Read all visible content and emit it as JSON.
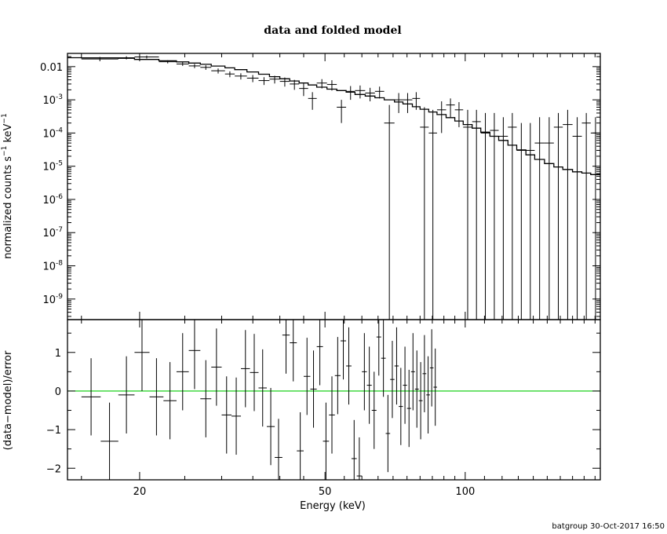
{
  "title": "data and folded model",
  "footer": "batgroup 30-Oct-2017 16:50",
  "colors": {
    "data": "#000000",
    "model": "#000000",
    "zero_line": "#00cc00",
    "frame": "#000000"
  },
  "chart_data": [
    {
      "type": "scatter",
      "panel": "top",
      "ylabel": "normalized counts s⁻¹ keV⁻¹",
      "xscale": "log",
      "yscale": "log",
      "xlim": [
        14,
        195
      ],
      "ylim": [
        2.4e-10,
        0.025
      ],
      "y_ticks": [
        {
          "value": 0.01,
          "label": "0.01"
        },
        {
          "value": 0.001,
          "mant": "10",
          "exp": "-3"
        },
        {
          "value": 0.0001,
          "mant": "10",
          "exp": "-4"
        },
        {
          "value": 1e-05,
          "mant": "10",
          "exp": "-5"
        },
        {
          "value": 1e-06,
          "mant": "10",
          "exp": "-6"
        },
        {
          "value": 1e-07,
          "mant": "10",
          "exp": "-7"
        },
        {
          "value": 1e-08,
          "mant": "10",
          "exp": "-8"
        },
        {
          "value": 1e-09,
          "mant": "10",
          "exp": "-9"
        }
      ],
      "data_points": [
        {
          "x_lo": 15.0,
          "x_hi": 18.0,
          "y": 0.017,
          "y_lo": 0.0145,
          "y_hi": 0.0195
        },
        {
          "x_lo": 18.0,
          "x_hi": 19.5,
          "y": 0.0185,
          "y_lo": 0.0165,
          "y_hi": 0.0205
        },
        {
          "x_lo": 19.5,
          "x_hi": 22.0,
          "y": 0.0195,
          "y_lo": 0.0175,
          "y_hi": 0.0215
        },
        {
          "x_lo": 22.0,
          "x_hi": 24.0,
          "y": 0.014,
          "y_lo": 0.0125,
          "y_hi": 0.0155
        },
        {
          "x_lo": 24.0,
          "x_hi": 25.5,
          "y": 0.012,
          "y_lo": 0.0105,
          "y_hi": 0.0135
        },
        {
          "x_lo": 25.5,
          "x_hi": 27.0,
          "y": 0.0105,
          "y_lo": 0.009,
          "y_hi": 0.012
        },
        {
          "x_lo": 27.0,
          "x_hi": 28.5,
          "y": 0.0095,
          "y_lo": 0.008,
          "y_hi": 0.011
        },
        {
          "x_lo": 28.5,
          "x_hi": 30.5,
          "y": 0.0075,
          "y_lo": 0.0062,
          "y_hi": 0.0088
        },
        {
          "x_lo": 30.5,
          "x_hi": 32.0,
          "y": 0.006,
          "y_lo": 0.0048,
          "y_hi": 0.0072
        },
        {
          "x_lo": 32.0,
          "x_hi": 34.0,
          "y": 0.0052,
          "y_lo": 0.0041,
          "y_hi": 0.0063
        },
        {
          "x_lo": 34.0,
          "x_hi": 36.0,
          "y": 0.0045,
          "y_lo": 0.0034,
          "y_hi": 0.0056
        },
        {
          "x_lo": 36.0,
          "x_hi": 38.0,
          "y": 0.0038,
          "y_lo": 0.0028,
          "y_hi": 0.0048
        },
        {
          "x_lo": 38.0,
          "x_hi": 40.0,
          "y": 0.0042,
          "y_lo": 0.0031,
          "y_hi": 0.0053
        },
        {
          "x_lo": 40.0,
          "x_hi": 42.0,
          "y": 0.0036,
          "y_lo": 0.0025,
          "y_hi": 0.0047
        },
        {
          "x_lo": 42.0,
          "x_hi": 44.0,
          "y": 0.003,
          "y_lo": 0.002,
          "y_hi": 0.004
        },
        {
          "x_lo": 44.0,
          "x_hi": 46.0,
          "y": 0.0022,
          "y_lo": 0.0013,
          "y_hi": 0.0031
        },
        {
          "x_lo": 46.0,
          "x_hi": 48.0,
          "y": 0.0011,
          "y_lo": 0.0005,
          "y_hi": 0.0017
        },
        {
          "x_lo": 48.0,
          "x_hi": 50.5,
          "y": 0.0032,
          "y_lo": 0.0022,
          "y_hi": 0.0042
        },
        {
          "x_lo": 50.5,
          "x_hi": 53.0,
          "y": 0.0029,
          "y_lo": 0.0019,
          "y_hi": 0.0039
        },
        {
          "x_lo": 53.0,
          "x_hi": 55.5,
          "y": 0.0006,
          "y_lo": 0.0002,
          "y_hi": 0.001
        },
        {
          "x_lo": 55.5,
          "x_hi": 58.0,
          "y": 0.0018,
          "y_lo": 0.001,
          "y_hi": 0.0026
        },
        {
          "x_lo": 58.0,
          "x_hi": 61.0,
          "y": 0.0019,
          "y_lo": 0.0011,
          "y_hi": 0.0027
        },
        {
          "x_lo": 61.0,
          "x_hi": 64.0,
          "y": 0.0016,
          "y_lo": 0.0009,
          "y_hi": 0.0023
        },
        {
          "x_lo": 64.0,
          "x_hi": 67.0,
          "y": 0.0018,
          "y_lo": 0.0011,
          "y_hi": 0.0025
        },
        {
          "x_lo": 67.0,
          "x_hi": 70.5,
          "y": 0.0002,
          "y_lo": null,
          "y_hi": 0.0007
        },
        {
          "x_lo": 70.5,
          "x_hi": 73.5,
          "y": 0.001,
          "y_lo": 0.0004,
          "y_hi": 0.0016
        },
        {
          "x_lo": 73.5,
          "x_hi": 77.0,
          "y": 0.001,
          "y_lo": 0.0004,
          "y_hi": 0.0016
        },
        {
          "x_lo": 77.0,
          "x_hi": 80.0,
          "y": 0.0011,
          "y_lo": 0.0005,
          "y_hi": 0.0017
        },
        {
          "x_lo": 80.0,
          "x_hi": 83.5,
          "y": 0.00015,
          "y_lo": null,
          "y_hi": 0.0006
        },
        {
          "x_lo": 83.5,
          "x_hi": 87.0,
          "y": 0.0001,
          "y_lo": null,
          "y_hi": 0.0005
        },
        {
          "x_lo": 87.0,
          "x_hi": 91.0,
          "y": 0.0005,
          "y_lo": 0.0001,
          "y_hi": 0.0009
        },
        {
          "x_lo": 91.0,
          "x_hi": 95.0,
          "y": 0.0007,
          "y_lo": 0.0003,
          "y_hi": 0.0011
        },
        {
          "x_lo": 95.0,
          "x_hi": 99.0,
          "y": 0.0005,
          "y_lo": 0.00015,
          "y_hi": 0.00085
        },
        {
          "x_lo": 99.0,
          "x_hi": 103.5,
          "y": 0.00015,
          "y_lo": null,
          "y_hi": 0.0005
        },
        {
          "x_lo": 103.5,
          "x_hi": 108.0,
          "y": 0.00022,
          "y_lo": null,
          "y_hi": 0.0005
        },
        {
          "x_lo": 108.0,
          "x_hi": 113.0,
          "y": 0.0001,
          "y_lo": null,
          "y_hi": 0.0004
        },
        {
          "x_lo": 113.0,
          "x_hi": 118.0,
          "y": 0.00012,
          "y_lo": null,
          "y_hi": 0.0004
        },
        {
          "x_lo": 118.0,
          "x_hi": 123.5,
          "y": 8e-05,
          "y_lo": null,
          "y_hi": 0.0003
        },
        {
          "x_lo": 123.5,
          "x_hi": 129.0,
          "y": 0.00015,
          "y_lo": null,
          "y_hi": 0.0004
        },
        {
          "x_lo": 129.0,
          "x_hi": 135.0,
          "y": 3e-05,
          "y_lo": null,
          "y_hi": 0.0002
        },
        {
          "x_lo": 135.0,
          "x_hi": 141.0,
          "y": 3e-05,
          "y_lo": null,
          "y_hi": 0.0002
        },
        {
          "x_lo": 141.0,
          "x_hi": 148.0,
          "y": 5e-05,
          "y_lo": null,
          "y_hi": 0.0003
        },
        {
          "x_lo": 148.0,
          "x_hi": 155.0,
          "y": 5e-05,
          "y_lo": null,
          "y_hi": 0.0003
        },
        {
          "x_lo": 155.0,
          "x_hi": 162.0,
          "y": 0.00015,
          "y_lo": null,
          "y_hi": 0.0004
        },
        {
          "x_lo": 162.0,
          "x_hi": 170.0,
          "y": 0.00018,
          "y_lo": null,
          "y_hi": 0.0005
        },
        {
          "x_lo": 170.0,
          "x_hi": 178.0,
          "y": 8e-05,
          "y_lo": null,
          "y_hi": 0.0003
        },
        {
          "x_lo": 178.0,
          "x_hi": 186.0,
          "y": 0.0002,
          "y_lo": null,
          "y_hi": 0.0004
        },
        {
          "x_lo": 186.0,
          "x_hi": 195.0,
          "y": 0.0001,
          "y_lo": null,
          "y_hi": 0.0003
        }
      ],
      "model": {
        "type": "step",
        "edges": [
          14,
          15,
          18,
          19.5,
          22,
          24,
          25.5,
          27,
          28.5,
          30.5,
          32,
          34,
          36,
          38,
          40,
          42,
          44,
          46,
          48,
          50.5,
          53,
          55.5,
          58,
          61,
          64,
          67,
          70.5,
          73.5,
          77,
          80,
          83.5,
          87,
          91,
          95,
          99,
          103.5,
          108,
          113,
          118,
          123.5,
          129,
          135,
          141,
          148,
          155,
          162,
          170,
          178,
          186,
          195
        ],
        "values": [
          0.0185,
          0.0183,
          0.0178,
          0.0164,
          0.015,
          0.0139,
          0.0128,
          0.0117,
          0.0104,
          0.0092,
          0.0081,
          0.0069,
          0.0059,
          0.005,
          0.0043,
          0.0037,
          0.0032,
          0.0028,
          0.0024,
          0.0021,
          0.0019,
          0.0017,
          0.00145,
          0.0013,
          0.00115,
          0.001,
          0.00086,
          0.00075,
          0.00062,
          0.00052,
          0.00043,
          0.00036,
          0.00029,
          0.00023,
          0.00018,
          0.00014,
          0.000106,
          8e-05,
          6e-05,
          4.3e-05,
          3.1e-05,
          2.2e-05,
          1.6e-05,
          1.2e-05,
          9.5e-06,
          8e-06,
          6.8e-06,
          6.2e-06,
          5.6e-06
        ]
      }
    },
    {
      "type": "scatter",
      "panel": "bottom",
      "xlabel": "Energy (keV)",
      "ylabel": "(data−model)/error",
      "xscale": "log",
      "xlim": [
        14,
        195
      ],
      "ylim": [
        -2.3,
        1.85
      ],
      "x_ticks": [
        {
          "value": 20,
          "label": "20"
        },
        {
          "value": 50,
          "label": "50"
        },
        {
          "value": 100,
          "label": "100"
        }
      ],
      "y_ticks": [
        {
          "value": 1,
          "label": "1"
        },
        {
          "value": 0,
          "label": "0"
        },
        {
          "value": -1,
          "label": "−1"
        },
        {
          "value": -2,
          "label": "−2"
        }
      ],
      "zero_line": 0,
      "residuals": [
        {
          "x_lo": 15.0,
          "x_hi": 16.5,
          "y": -0.15,
          "y_lo": -1.15,
          "y_hi": 0.85
        },
        {
          "x_lo": 16.5,
          "x_hi": 18.0,
          "y": -1.3,
          "y_lo": -2.3,
          "y_hi": -0.3
        },
        {
          "x_lo": 18.0,
          "x_hi": 19.5,
          "y": -0.1,
          "y_lo": -1.1,
          "y_hi": 0.9
        },
        {
          "x_lo": 19.5,
          "x_hi": 21.0,
          "y": 1.0,
          "y_lo": 0.0,
          "y_hi": 2.0
        },
        {
          "x_lo": 21.0,
          "x_hi": 22.5,
          "y": -0.15,
          "y_lo": -1.15,
          "y_hi": 0.85
        },
        {
          "x_lo": 22.5,
          "x_hi": 24.0,
          "y": -0.25,
          "y_lo": -1.25,
          "y_hi": 0.75
        },
        {
          "x_lo": 24.0,
          "x_hi": 25.5,
          "y": 0.5,
          "y_lo": -0.5,
          "y_hi": 1.5
        },
        {
          "x_lo": 25.5,
          "x_hi": 27.0,
          "y": 1.05,
          "y_lo": 0.05,
          "y_hi": 2.05
        },
        {
          "x_lo": 27.0,
          "x_hi": 28.5,
          "y": -0.2,
          "y_lo": -1.2,
          "y_hi": 0.8
        },
        {
          "x_lo": 28.5,
          "x_hi": 30.0,
          "y": 0.62,
          "y_lo": -0.38,
          "y_hi": 1.62
        },
        {
          "x_lo": 30.0,
          "x_hi": 31.5,
          "y": -0.62,
          "y_lo": -1.62,
          "y_hi": 0.38
        },
        {
          "x_lo": 31.5,
          "x_hi": 33.0,
          "y": -0.65,
          "y_lo": -1.65,
          "y_hi": 0.35
        },
        {
          "x_lo": 33.0,
          "x_hi": 34.5,
          "y": 0.58,
          "y_lo": -0.42,
          "y_hi": 1.58
        },
        {
          "x_lo": 34.5,
          "x_hi": 36.0,
          "y": 0.48,
          "y_lo": -0.52,
          "y_hi": 1.48
        },
        {
          "x_lo": 36.0,
          "x_hi": 37.5,
          "y": 0.08,
          "y_lo": -0.92,
          "y_hi": 1.08
        },
        {
          "x_lo": 37.5,
          "x_hi": 39.0,
          "y": -0.92,
          "y_lo": -1.92,
          "y_hi": 0.08
        },
        {
          "x_lo": 39.0,
          "x_hi": 40.5,
          "y": -1.72,
          "y_lo": -2.3,
          "y_hi": -0.72
        },
        {
          "x_lo": 40.5,
          "x_hi": 42.0,
          "y": 1.45,
          "y_lo": 0.45,
          "y_hi": 1.85
        },
        {
          "x_lo": 42.0,
          "x_hi": 43.5,
          "y": 1.25,
          "y_lo": 0.25,
          "y_hi": 1.85
        },
        {
          "x_lo": 43.5,
          "x_hi": 45.0,
          "y": -1.55,
          "y_lo": -2.3,
          "y_hi": -0.55
        },
        {
          "x_lo": 45.0,
          "x_hi": 46.5,
          "y": 0.38,
          "y_lo": -0.62,
          "y_hi": 1.38
        },
        {
          "x_lo": 46.5,
          "x_hi": 48.0,
          "y": 0.05,
          "y_lo": -0.95,
          "y_hi": 1.05
        },
        {
          "x_lo": 48.0,
          "x_hi": 49.5,
          "y": 1.15,
          "y_lo": 0.15,
          "y_hi": 1.85
        },
        {
          "x_lo": 49.5,
          "x_hi": 51.0,
          "y": -1.3,
          "y_lo": -2.3,
          "y_hi": -0.3
        },
        {
          "x_lo": 51.0,
          "x_hi": 52.5,
          "y": -0.62,
          "y_lo": -1.62,
          "y_hi": 0.38
        },
        {
          "x_lo": 52.5,
          "x_hi": 54.0,
          "y": 0.4,
          "y_lo": -0.6,
          "y_hi": 1.4
        },
        {
          "x_lo": 54.0,
          "x_hi": 55.5,
          "y": 1.3,
          "y_lo": 0.3,
          "y_hi": 1.85
        },
        {
          "x_lo": 55.5,
          "x_hi": 57.0,
          "y": 0.65,
          "y_lo": -0.35,
          "y_hi": 1.65
        },
        {
          "x_lo": 57.0,
          "x_hi": 58.5,
          "y": -1.75,
          "y_lo": -2.3,
          "y_hi": -0.75
        },
        {
          "x_lo": 58.5,
          "x_hi": 60.0,
          "y": -2.2,
          "y_lo": -2.3,
          "y_hi": -1.2
        },
        {
          "x_lo": 60.0,
          "x_hi": 61.5,
          "y": 0.5,
          "y_lo": -0.5,
          "y_hi": 1.5
        },
        {
          "x_lo": 61.5,
          "x_hi": 63.0,
          "y": 0.15,
          "y_lo": -0.85,
          "y_hi": 1.15
        },
        {
          "x_lo": 63.0,
          "x_hi": 64.5,
          "y": -0.5,
          "y_lo": -1.5,
          "y_hi": 0.5
        },
        {
          "x_lo": 64.5,
          "x_hi": 66.0,
          "y": 1.4,
          "y_lo": 0.4,
          "y_hi": 1.85
        },
        {
          "x_lo": 66.0,
          "x_hi": 67.5,
          "y": 0.85,
          "y_lo": -0.15,
          "y_hi": 1.85
        },
        {
          "x_lo": 67.5,
          "x_hi": 69.0,
          "y": -1.1,
          "y_lo": -2.1,
          "y_hi": -0.1
        },
        {
          "x_lo": 69.0,
          "x_hi": 70.5,
          "y": 0.3,
          "y_lo": -0.7,
          "y_hi": 1.3
        },
        {
          "x_lo": 70.5,
          "x_hi": 72.0,
          "y": 0.65,
          "y_lo": -0.35,
          "y_hi": 1.65
        },
        {
          "x_lo": 72.0,
          "x_hi": 73.5,
          "y": -0.4,
          "y_lo": -1.4,
          "y_hi": 0.6
        },
        {
          "x_lo": 73.5,
          "x_hi": 75.0,
          "y": 0.15,
          "y_lo": -0.85,
          "y_hi": 1.15
        },
        {
          "x_lo": 75.0,
          "x_hi": 76.5,
          "y": -0.45,
          "y_lo": -1.45,
          "y_hi": 0.55
        },
        {
          "x_lo": 76.5,
          "x_hi": 78.0,
          "y": 0.5,
          "y_lo": -0.5,
          "y_hi": 1.5
        },
        {
          "x_lo": 78.0,
          "x_hi": 79.5,
          "y": 0.05,
          "y_lo": -0.95,
          "y_hi": 1.05
        },
        {
          "x_lo": 79.5,
          "x_hi": 81.0,
          "y": -0.25,
          "y_lo": -1.25,
          "y_hi": 0.75
        },
        {
          "x_lo": 81.0,
          "x_hi": 82.5,
          "y": 0.45,
          "y_lo": -0.55,
          "y_hi": 1.45
        },
        {
          "x_lo": 82.5,
          "x_hi": 84.0,
          "y": -0.1,
          "y_lo": -1.1,
          "y_hi": 0.9
        },
        {
          "x_lo": 84.0,
          "x_hi": 85.5,
          "y": 0.6,
          "y_lo": -0.4,
          "y_hi": 1.6
        },
        {
          "x_lo": 85.5,
          "x_hi": 87.0,
          "y": 0.1,
          "y_lo": -0.9,
          "y_hi": 1.1
        }
      ]
    }
  ]
}
